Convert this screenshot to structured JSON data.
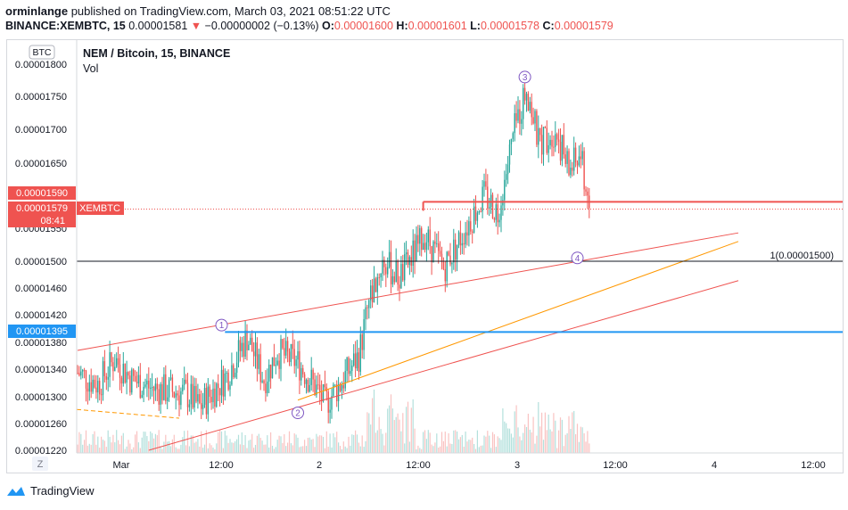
{
  "header": {
    "author": "orminlange",
    "published_text": "published on TradingView.com, March 03, 2021 08:51:22 UTC",
    "symbol_interval": "BINANCE:XEMBTC, 15",
    "last_price": "0.00001581",
    "change": "−0.00000002 (−0.13%)",
    "o_label": "O:",
    "o_value": "0.00001600",
    "h_label": "H:",
    "h_value": "0.00001601",
    "l_label": "L:",
    "l_value": "0.00001578",
    "c_label": "C:",
    "c_value": "0.00001579"
  },
  "chart_title": "NEM / Bitcoin, 15, BINANCE",
  "volume_label": "Vol",
  "currency_badge": "BTC",
  "timezone_button": "Z",
  "footer_brand": "TradingView",
  "colors": {
    "up": "#26a69a",
    "down": "#ef5350",
    "trendline": "#ef5350",
    "fib": "#ff9800",
    "support": "#2196f3",
    "text": "#131722"
  },
  "price_labels": {
    "current_price": "0.00001579",
    "countdown": "08:41",
    "symbol_tag": "XEMBTC",
    "resistance": "0.00001590",
    "support": "0.00001395"
  },
  "annotations": [
    {
      "label": "1"
    },
    {
      "label": "2"
    },
    {
      "label": "3"
    },
    {
      "label": "4"
    }
  ],
  "level_label": "1(0.00001500)",
  "chart_data": {
    "type": "candlestick",
    "title": "NEM / Bitcoin, 15, BINANCE",
    "ylim": [
      1.22e-05,
      1.81e-05
    ],
    "y_ticks": [
      "0.00001800",
      "0.00001750",
      "0.00001700",
      "0.00001650",
      "0.00001600",
      "0.00001550",
      "0.00001500",
      "0.00001460",
      "0.00001420",
      "0.00001380",
      "0.00001340",
      "0.00001300",
      "0.00001260",
      "0.00001220"
    ],
    "x_ticks": [
      "Mar",
      "12:00",
      "2",
      "12:00",
      "3",
      "12:00",
      "4",
      "12:00"
    ],
    "shape_points": [
      {
        "t": 0,
        "p": 1.335e-05
      },
      {
        "t": 12,
        "p": 1.318e-05
      },
      {
        "t": 22,
        "p": 1.355e-05
      },
      {
        "t": 32,
        "p": 1.325e-05
      },
      {
        "t": 44,
        "p": 1.312e-05
      },
      {
        "t": 64,
        "p": 1.305e-05
      },
      {
        "t": 72,
        "p": 1.285e-05
      },
      {
        "t": 88,
        "p": 1.33e-05
      },
      {
        "t": 100,
        "p": 1.388e-05
      },
      {
        "t": 110,
        "p": 1.325e-05
      },
      {
        "t": 118,
        "p": 1.365e-05
      },
      {
        "t": 130,
        "p": 1.35e-05
      },
      {
        "t": 140,
        "p": 1.315e-05
      },
      {
        "t": 146,
        "p": 1.29e-05
      },
      {
        "t": 156,
        "p": 1.322e-05
      },
      {
        "t": 166,
        "p": 1.36e-05
      },
      {
        "t": 172,
        "p": 1.44e-05
      },
      {
        "t": 180,
        "p": 1.5e-05
      },
      {
        "t": 190,
        "p": 1.475e-05
      },
      {
        "t": 205,
        "p": 1.54e-05
      },
      {
        "t": 216,
        "p": 1.49e-05
      },
      {
        "t": 228,
        "p": 1.545e-05
      },
      {
        "t": 240,
        "p": 1.6e-05
      },
      {
        "t": 248,
        "p": 1.575e-05
      },
      {
        "t": 258,
        "p": 1.7e-05
      },
      {
        "t": 265,
        "p": 1.765e-05
      },
      {
        "t": 272,
        "p": 1.68e-05
      },
      {
        "t": 282,
        "p": 1.7e-05
      },
      {
        "t": 290,
        "p": 1.64e-05
      },
      {
        "t": 297,
        "p": 1.66e-05
      },
      {
        "t": 302,
        "p": 1.58e-05
      }
    ],
    "trendlines": [
      {
        "name": "upper-channel",
        "from": {
          "t": 0,
          "p": 1.368e-05
        },
        "to": {
          "t": 390,
          "p": 1.543e-05
        }
      },
      {
        "name": "lower-channel",
        "from": {
          "t": 42,
          "p": 1.22e-05
        },
        "to": {
          "t": 390,
          "p": 1.471e-05
        }
      },
      {
        "name": "fib-line",
        "from": {
          "t": 130,
          "p": 1.295e-05
        },
        "to": {
          "t": 390,
          "p": 1.53e-05
        }
      }
    ],
    "horizontal_levels": [
      {
        "name": "support",
        "price": 1.395e-05,
        "from_t": 87
      },
      {
        "name": "resistance",
        "price": 1.59e-05,
        "from_t": 204
      },
      {
        "name": "target",
        "price": 1.5e-05
      }
    ],
    "annotation_points": [
      {
        "label": "1",
        "t": 85,
        "p": 1.405e-05
      },
      {
        "label": "2",
        "t": 130,
        "p": 1.276e-05
      },
      {
        "label": "3",
        "t": 264,
        "p": 1.78e-05
      },
      {
        "label": "4",
        "t": 295,
        "p": 1.505e-05
      }
    ]
  }
}
